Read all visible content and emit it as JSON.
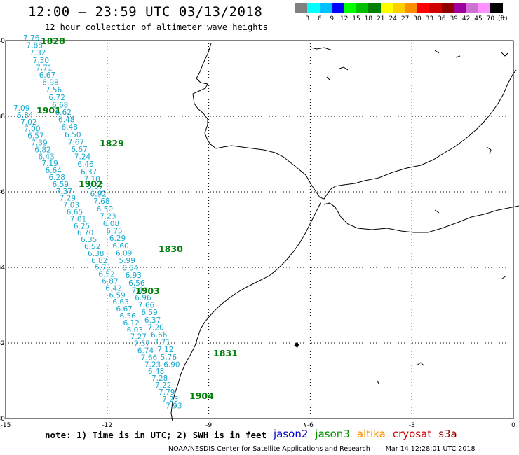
{
  "header": {
    "title": "12:00 – 23:59 UTC 03/13/2018",
    "subtitle": "12 hour collection of altimeter wave heights"
  },
  "color_legend": {
    "colors": [
      "#808080",
      "#00ffff",
      "#00c0ff",
      "#0000ff",
      "#00ff00",
      "#00c000",
      "#008000",
      "#ffff00",
      "#ffd000",
      "#ff9000",
      "#ff0000",
      "#d00000",
      "#900000",
      "#a000a0",
      "#d070d0",
      "#ff90ff",
      "#000000"
    ],
    "labels": [
      "3",
      "6",
      "9",
      "12",
      "15",
      "18",
      "21",
      "24",
      "27",
      "30",
      "33",
      "36",
      "39",
      "42",
      "45",
      "70",
      "(ft)"
    ]
  },
  "axes": {
    "x_labels": [
      "-15",
      "-12",
      "-9",
      "-6",
      "-3",
      "0"
    ],
    "y_labels": [
      "40",
      "38",
      "36",
      "34",
      "32",
      "30"
    ]
  },
  "map": {
    "type": "coastline-track",
    "tracks": [
      {
        "id": "1828",
        "values": [
          "7.76",
          "7.88",
          "7.32",
          "7.30",
          "7.71",
          "6.67",
          "6.98",
          "7.56",
          "6.72",
          "6.68",
          "6.62",
          "6.48",
          "6.48",
          "6.50",
          "7.67",
          "6.67",
          "7.24",
          "6.46",
          "6.37",
          "7.10",
          "6.57",
          "6.92",
          "7.68",
          "6.50",
          "7.23",
          "6.08",
          "6.75",
          "6.29",
          "6.60",
          "6.09",
          "5.99",
          "6.54",
          "6.93",
          "6.56",
          "7.11",
          "6.96",
          "7.66",
          "6.59",
          "6.37",
          "7.20",
          "6.66",
          "7.71",
          "7.12",
          "5.76",
          "6.90"
        ]
      },
      {
        "id": "1901",
        "values": [
          "7.09",
          "6.84",
          "7.02",
          "7.00",
          "6.57",
          "7.39",
          "6.82",
          "6.43",
          "7.19",
          "6.64",
          "6.28",
          "6.59",
          "7.37",
          "7.29",
          "7.03",
          "6.65",
          "7.01",
          "6.25",
          "6.70",
          "6.35",
          "6.52",
          "6.38",
          "6.82",
          "5.71",
          "6.52",
          "6.87",
          "6.42",
          "6.59",
          "6.63",
          "6.67",
          "6.56",
          "6.12",
          "6.03",
          "7.27",
          "7.57",
          "6.74",
          "7.66",
          "7.23",
          "6.48",
          "7.28",
          "7.22",
          "7.79",
          "7.23",
          "7.93"
        ]
      }
    ],
    "pass_labels": [
      "1828",
      "1901",
      "1829",
      "1902",
      "1830",
      "1903",
      "1831",
      "1904"
    ]
  },
  "footer": {
    "note": "note: 1) Time is in UTC; 2) SWH is in feet",
    "satellites": [
      {
        "name": "jason2",
        "color": "#0000cc"
      },
      {
        "name": "jason3",
        "color": "#009000"
      },
      {
        "name": "altika",
        "color": "#ff9000"
      },
      {
        "name": "cryosat",
        "color": "#d00000"
      },
      {
        "name": "s3a",
        "color": "#900000"
      }
    ],
    "credit": "NOAA/NESDIS Center for Satellite Applications and Research",
    "timestamp": "Mar 14 12:28:01 UTC 2018"
  }
}
